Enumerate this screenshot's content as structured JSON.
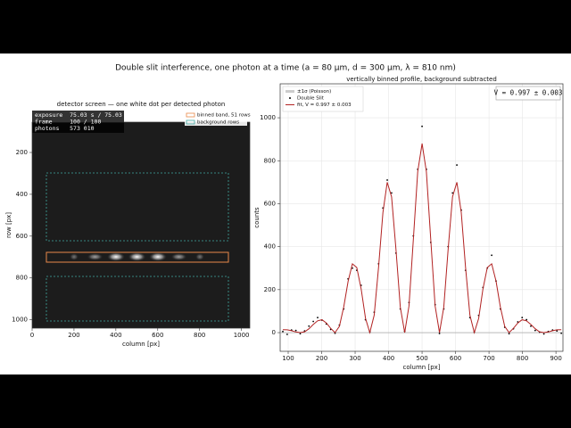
{
  "title": "Double slit interference, one photon at a time (a = 80 µm, d = 300 µm, λ = 810 nm)",
  "chart_data": [
    {
      "type": "image",
      "title": "detector screen — one white dot per detected photon",
      "xlabel": "column [px]",
      "ylabel": "row [px]",
      "xlim": [
        0,
        1040
      ],
      "ylim": [
        1040,
        55
      ],
      "xticks": [
        0,
        200,
        400,
        600,
        800,
        1000
      ],
      "yticks": [
        200,
        400,
        600,
        800,
        1000
      ],
      "info": [
        "exposure  75.03 s / 75.03 s",
        "frame     100 / 100",
        "photons   573 010"
      ],
      "legend": [
        {
          "name": "binned band, 51 rows",
          "color": "#e8894a"
        },
        {
          "name": "background rows",
          "color": "#3fa7a0"
        }
      ]
    },
    {
      "type": "line",
      "title": "vertically binned profile, background subtracted",
      "xlabel": "column [px]",
      "ylabel": "counts",
      "xlim": [
        76,
        921
      ],
      "ylim": [
        -87,
        1158
      ],
      "xticks": [
        100,
        200,
        300,
        400,
        500,
        600,
        700,
        800,
        900
      ],
      "yticks": [
        0,
        200,
        400,
        600,
        800,
        1000
      ],
      "grid": true,
      "band_label": "±1σ (Poisson)",
      "annotation": "V = 0.997 ± 0.003",
      "x": [
        84,
        97,
        110,
        123,
        136,
        149,
        162,
        175,
        188,
        201,
        214,
        227,
        240,
        253,
        266,
        279,
        292,
        305,
        318,
        331,
        344,
        357,
        370,
        383,
        396,
        409,
        422,
        435,
        448,
        461,
        474,
        487,
        500,
        513,
        526,
        539,
        552,
        565,
        578,
        591,
        604,
        617,
        630,
        643,
        656,
        669,
        682,
        695,
        708,
        721,
        734,
        747,
        760,
        773,
        786,
        799,
        812,
        825,
        838,
        851,
        864,
        877,
        890,
        903,
        916
      ],
      "series": [
        {
          "name": "Double Slit",
          "color": "#000000",
          "style": "markers",
          "values": [
            5,
            -8,
            12,
            10,
            -5,
            8,
            30,
            52,
            70,
            58,
            40,
            15,
            -3,
            35,
            110,
            250,
            300,
            290,
            220,
            60,
            4,
            95,
            320,
            580,
            710,
            650,
            370,
            110,
            6,
            140,
            450,
            760,
            960,
            760,
            420,
            130,
            -4,
            110,
            400,
            650,
            780,
            570,
            290,
            70,
            2,
            80,
            210,
            300,
            360,
            240,
            110,
            25,
            -5,
            18,
            50,
            70,
            60,
            30,
            10,
            2,
            -6,
            5,
            12,
            8,
            -3
          ]
        },
        {
          "name": "fit,  V = 0.997 ± 0.003",
          "color": "#b22222",
          "style": "line",
          "values": [
            14,
            13,
            9,
            3,
            0,
            4,
            18,
            38,
            55,
            60,
            45,
            20,
            0,
            29,
            120,
            239,
            320,
            303,
            203,
            66,
            0,
            81,
            304,
            559,
            700,
            632,
            388,
            118,
            0,
            124,
            434,
            749,
            880,
            749,
            434,
            124,
            0,
            118,
            388,
            632,
            700,
            559,
            304,
            81,
            0,
            66,
            203,
            303,
            320,
            239,
            120,
            29,
            0,
            20,
            45,
            60,
            55,
            38,
            18,
            4,
            0,
            3,
            9,
            13,
            14
          ]
        }
      ]
    }
  ]
}
